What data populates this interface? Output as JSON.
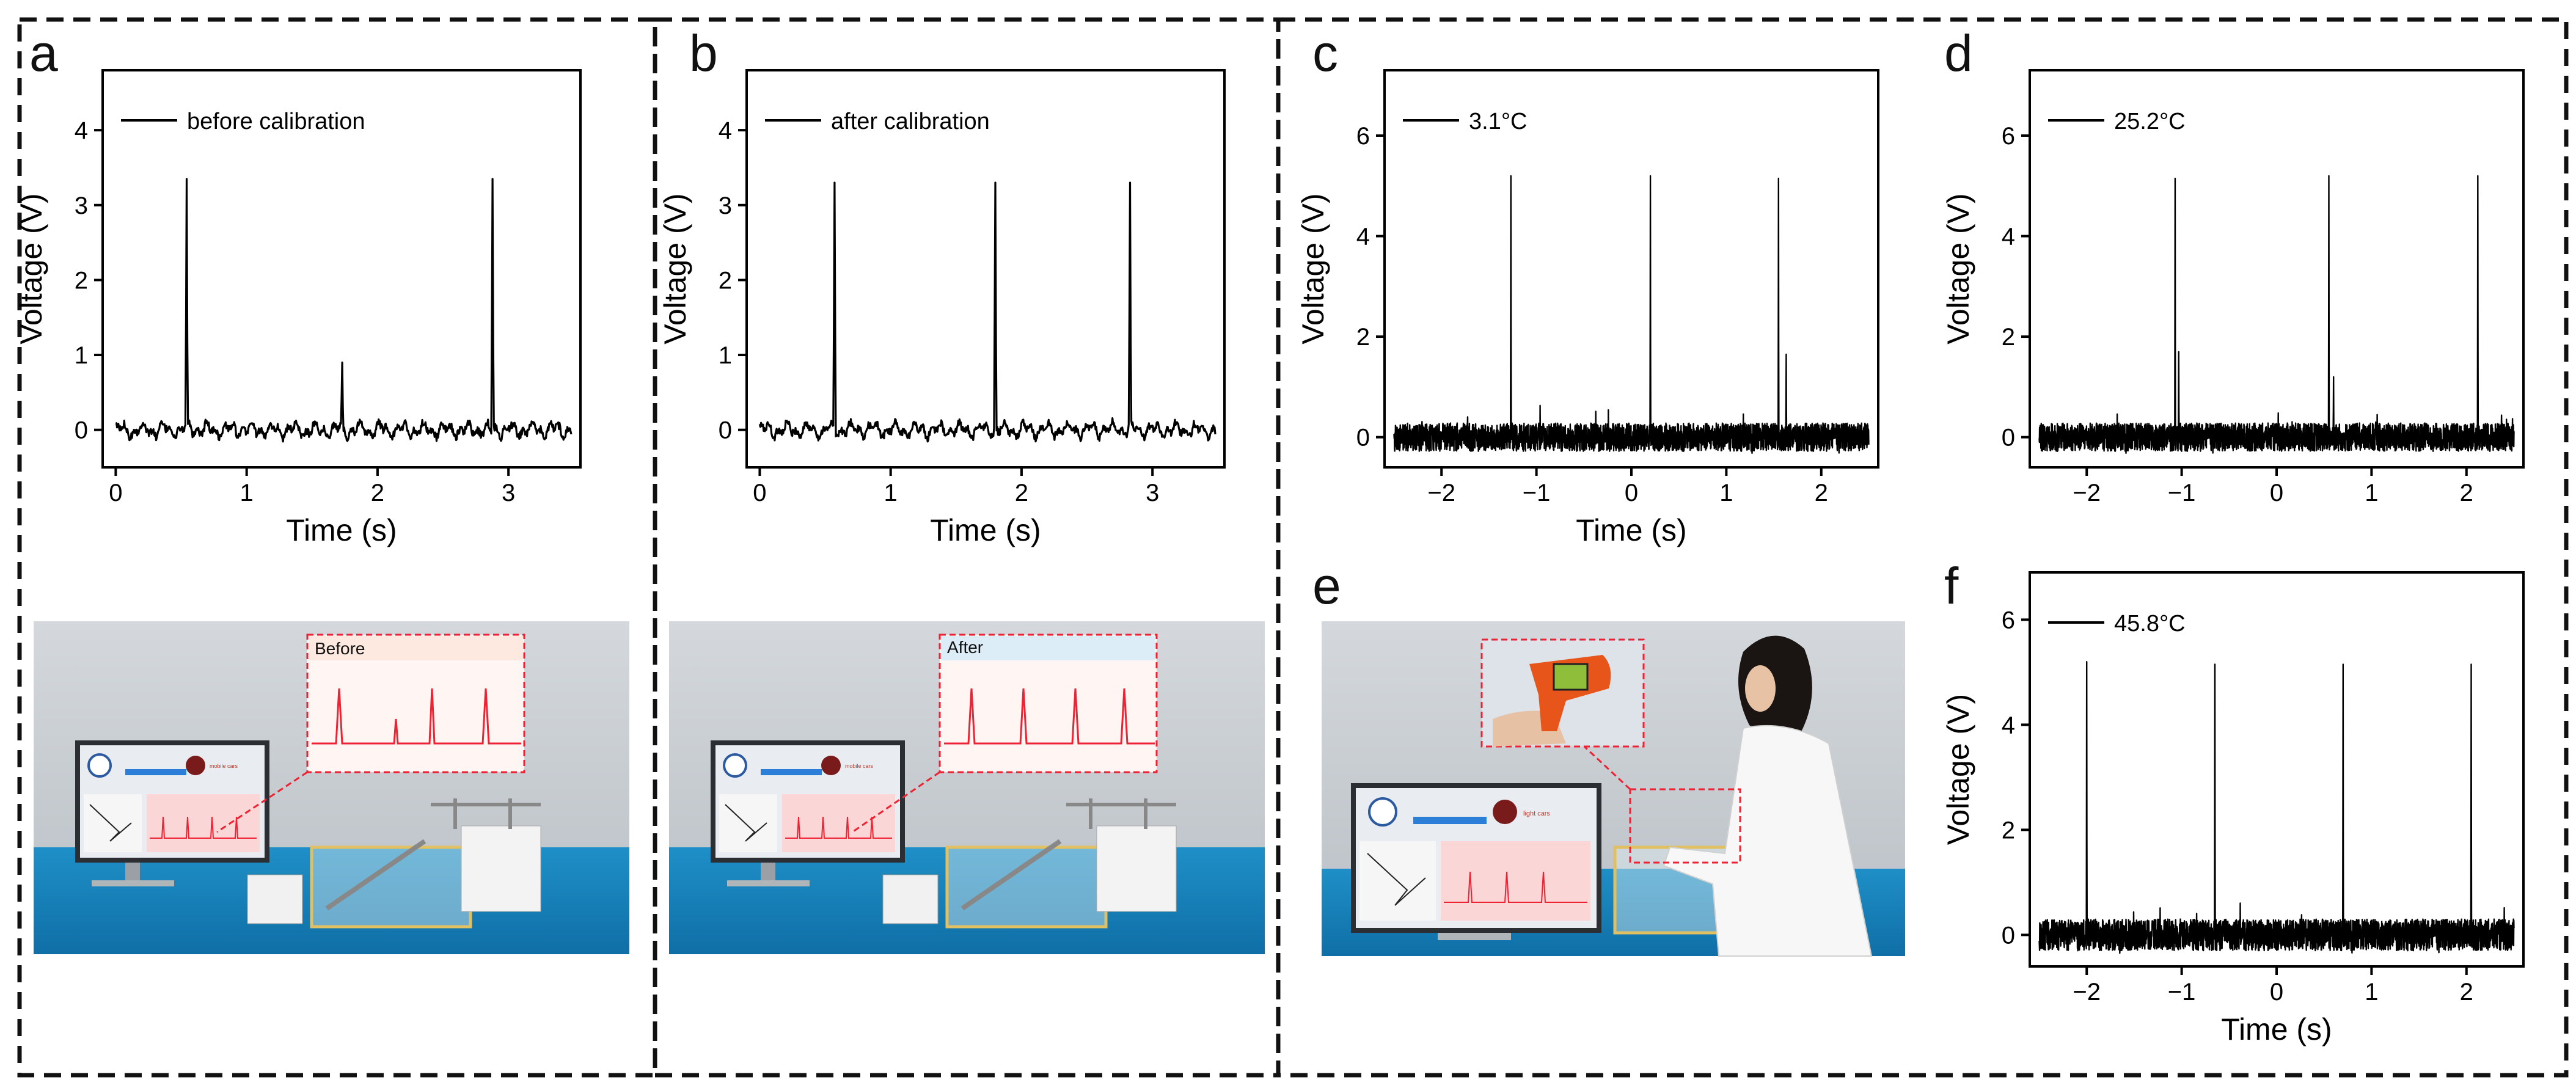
{
  "figure": {
    "panel_letters": {
      "a": "a",
      "b": "b",
      "c": "c",
      "d": "d",
      "e": "e",
      "f": "f"
    },
    "photo_labels": {
      "before": "Before",
      "after": "After",
      "screen_text": "mobile cars",
      "screen_text_e": "light cars"
    }
  },
  "chart_data": [
    {
      "id": "a",
      "type": "line",
      "legend": "before calibration",
      "xlabel": "Time (s)",
      "ylabel": "Voltage (V)",
      "xlim": [
        -0.1,
        3.55
      ],
      "ylim": [
        -0.5,
        4.8
      ],
      "xticks": [
        0,
        1,
        2,
        3
      ],
      "xtick_labels": [
        "0",
        "1",
        "2",
        "3"
      ],
      "yticks": [
        0,
        1,
        2,
        3,
        4
      ],
      "ytick_labels": [
        "0",
        "1",
        "2",
        "3",
        "4"
      ],
      "x_range": [
        0,
        3.48
      ],
      "noise": "ripple",
      "baseline_amplitude": 0.1,
      "peaks": [
        {
          "x": 0.54,
          "y": 3.35
        },
        {
          "x": 1.73,
          "y": 0.9
        },
        {
          "x": 2.88,
          "y": 3.35
        }
      ]
    },
    {
      "id": "b",
      "type": "line",
      "legend": "after calibration",
      "xlabel": "Time (s)",
      "ylabel": "Voltage (V)",
      "xlim": [
        -0.1,
        3.55
      ],
      "ylim": [
        -0.5,
        4.8
      ],
      "xticks": [
        0,
        1,
        2,
        3
      ],
      "xtick_labels": [
        "0",
        "1",
        "2",
        "3"
      ],
      "yticks": [
        0,
        1,
        2,
        3,
        4
      ],
      "ytick_labels": [
        "0",
        "1",
        "2",
        "3",
        "4"
      ],
      "x_range": [
        0,
        3.48
      ],
      "noise": "ripple",
      "baseline_amplitude": 0.1,
      "peaks": [
        {
          "x": 0.57,
          "y": 3.3
        },
        {
          "x": 1.8,
          "y": 3.3
        },
        {
          "x": 2.83,
          "y": 3.3
        }
      ]
    },
    {
      "id": "c",
      "type": "line",
      "legend": "3.1°C",
      "xlabel": "Time (s)",
      "ylabel": "Voltage (V)",
      "xlim": [
        -2.6,
        2.6
      ],
      "ylim": [
        -0.6,
        7.3
      ],
      "xticks": [
        -2,
        -1,
        0,
        1,
        2
      ],
      "xtick_labels": [
        "−2",
        "−1",
        "0",
        "1",
        "2"
      ],
      "yticks": [
        0,
        2,
        4,
        6
      ],
      "ytick_labels": [
        "0",
        "2",
        "4",
        "6"
      ],
      "x_range": [
        -2.5,
        2.5
      ],
      "noise": "dense",
      "baseline_amplitude": 0.28,
      "peaks": [
        {
          "x": -1.27,
          "y": 5.2
        },
        {
          "x": 0.2,
          "y": 5.2
        },
        {
          "x": 1.55,
          "y": 5.15
        },
        {
          "x": 1.63,
          "y": 1.65
        }
      ]
    },
    {
      "id": "d",
      "type": "line",
      "legend": "25.2°C",
      "xlabel": "",
      "ylabel": "Voltage (V)",
      "xlim": [
        -2.6,
        2.6
      ],
      "ylim": [
        -0.6,
        7.3
      ],
      "xticks": [
        -2,
        -1,
        0,
        1,
        2
      ],
      "xtick_labels": [
        "−2",
        "−1",
        "0",
        "1",
        "2"
      ],
      "yticks": [
        0,
        2,
        4,
        6
      ],
      "ytick_labels": [
        "0",
        "2",
        "4",
        "6"
      ],
      "x_range": [
        -2.5,
        2.5
      ],
      "noise": "dense",
      "baseline_amplitude": 0.28,
      "peaks": [
        {
          "x": -1.07,
          "y": 5.15
        },
        {
          "x": -1.03,
          "y": 1.7
        },
        {
          "x": 0.55,
          "y": 5.2
        },
        {
          "x": 0.6,
          "y": 1.2
        },
        {
          "x": 2.12,
          "y": 5.2
        }
      ]
    },
    {
      "id": "f",
      "type": "line",
      "legend": "45.8°C",
      "xlabel": "Time (s)",
      "ylabel": "Voltage (V)",
      "xlim": [
        -2.6,
        2.6
      ],
      "ylim": [
        -0.6,
        6.9
      ],
      "xticks": [
        -2,
        -1,
        0,
        1,
        2
      ],
      "xtick_labels": [
        "−2",
        "−1",
        "0",
        "1",
        "2"
      ],
      "yticks": [
        0,
        2,
        4,
        6
      ],
      "ytick_labels": [
        "0",
        "2",
        "4",
        "6"
      ],
      "x_range": [
        -2.5,
        2.5
      ],
      "noise": "dense",
      "baseline_amplitude": 0.3,
      "peaks": [
        {
          "x": -2.0,
          "y": 5.2
        },
        {
          "x": -0.65,
          "y": 5.15
        },
        {
          "x": 0.7,
          "y": 5.15
        },
        {
          "x": 2.05,
          "y": 5.15
        }
      ]
    }
  ]
}
